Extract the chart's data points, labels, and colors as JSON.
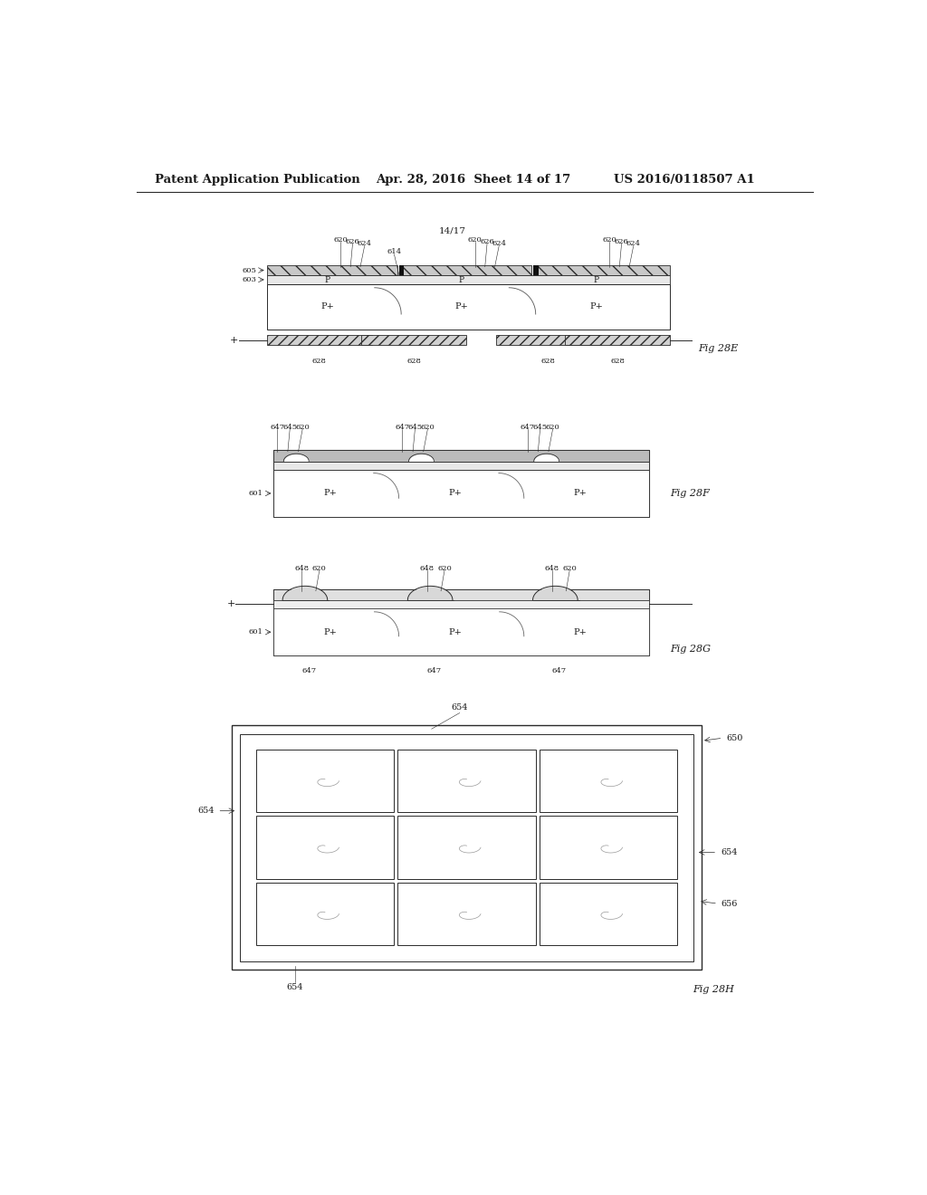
{
  "bg_color": "#ffffff",
  "header_left": "Patent Application Publication",
  "header_mid": "Apr. 28, 2016  Sheet 14 of 17",
  "header_right": "US 2016/0118507 A1",
  "page_label": "14/17",
  "text_color": "#1a1a1a",
  "line_color": "#2a2a2a"
}
